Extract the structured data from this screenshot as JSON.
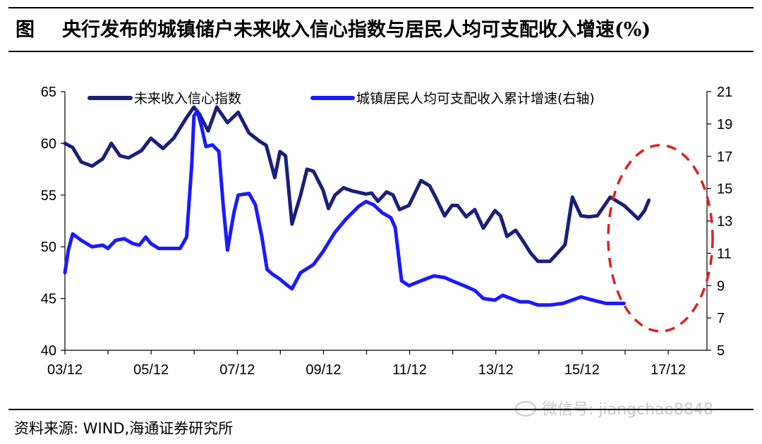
{
  "header": {
    "prefix": "图",
    "title": "央行发布的城镇储户未来收入信心指数与居民人均可支配收入增速(%)"
  },
  "footer": {
    "source": "资料来源: WIND,海通证券研究所",
    "watermark": "微信号: jiangchao8848"
  },
  "colors": {
    "series_confidence": "#1a1f7a",
    "series_income": "#1a1aff",
    "highlight_ellipse": "#e02020"
  },
  "chart_data": {
    "type": "line",
    "x_tick_labels": [
      "03/12",
      "05/12",
      "07/12",
      "09/12",
      "11/12",
      "13/12",
      "15/12",
      "17/12"
    ],
    "x_range": [
      2003.92,
      2018.85
    ],
    "y_left": {
      "range": [
        40,
        65
      ],
      "ticks": [
        40,
        45,
        50,
        55,
        60,
        65
      ]
    },
    "y_right": {
      "range": [
        5,
        21
      ],
      "ticks": [
        5,
        7,
        9,
        11,
        13,
        15,
        17,
        19,
        21
      ]
    },
    "grid": false,
    "legend_position": "top",
    "annotation": "red dashed ellipse highlighting 2016-2018",
    "series": [
      {
        "name": "未来收入信心指数",
        "axis": "left",
        "points": [
          [
            2003.92,
            60.0
          ],
          [
            2004.1,
            59.6
          ],
          [
            2004.3,
            58.2
          ],
          [
            2004.55,
            57.8
          ],
          [
            2004.8,
            58.5
          ],
          [
            2005.0,
            60.0
          ],
          [
            2005.2,
            58.8
          ],
          [
            2005.4,
            58.6
          ],
          [
            2005.7,
            59.3
          ],
          [
            2005.92,
            60.5
          ],
          [
            2006.2,
            59.5
          ],
          [
            2006.45,
            60.5
          ],
          [
            2006.75,
            62.5
          ],
          [
            2006.92,
            63.5
          ],
          [
            2007.05,
            62.8
          ],
          [
            2007.25,
            61.2
          ],
          [
            2007.45,
            63.5
          ],
          [
            2007.7,
            62.0
          ],
          [
            2007.95,
            63.0
          ],
          [
            2008.2,
            61.0
          ],
          [
            2008.45,
            60.2
          ],
          [
            2008.6,
            59.8
          ],
          [
            2008.8,
            56.7
          ],
          [
            2008.92,
            59.2
          ],
          [
            2009.05,
            58.8
          ],
          [
            2009.2,
            52.2
          ],
          [
            2009.4,
            55.0
          ],
          [
            2009.55,
            57.5
          ],
          [
            2009.7,
            57.3
          ],
          [
            2009.92,
            55.5
          ],
          [
            2010.05,
            53.7
          ],
          [
            2010.2,
            55.0
          ],
          [
            2010.4,
            55.7
          ],
          [
            2010.6,
            55.4
          ],
          [
            2010.92,
            55.1
          ],
          [
            2011.05,
            55.2
          ],
          [
            2011.2,
            54.4
          ],
          [
            2011.4,
            55.3
          ],
          [
            2011.55,
            55.0
          ],
          [
            2011.7,
            53.6
          ],
          [
            2011.92,
            54.0
          ],
          [
            2012.2,
            56.4
          ],
          [
            2012.4,
            55.9
          ],
          [
            2012.55,
            54.7
          ],
          [
            2012.75,
            53.0
          ],
          [
            2012.92,
            54.0
          ],
          [
            2013.05,
            54.0
          ],
          [
            2013.25,
            52.9
          ],
          [
            2013.45,
            53.6
          ],
          [
            2013.65,
            51.8
          ],
          [
            2013.92,
            53.5
          ],
          [
            2014.05,
            53.0
          ],
          [
            2014.2,
            51.0
          ],
          [
            2014.4,
            51.6
          ],
          [
            2014.55,
            50.7
          ],
          [
            2014.75,
            49.4
          ],
          [
            2014.92,
            48.6
          ],
          [
            2015.2,
            48.6
          ],
          [
            2015.4,
            49.5
          ],
          [
            2015.55,
            50.2
          ],
          [
            2015.72,
            54.8
          ],
          [
            2015.92,
            53.0
          ],
          [
            2016.1,
            52.9
          ],
          [
            2016.3,
            53.0
          ],
          [
            2016.6,
            54.8
          ],
          [
            2016.8,
            54.3
          ],
          [
            2016.92,
            54.0
          ],
          [
            2017.05,
            53.5
          ],
          [
            2017.25,
            52.7
          ],
          [
            2017.4,
            53.5
          ],
          [
            2017.5,
            54.5
          ]
        ]
      },
      {
        "name": "城镇居民人均可支配收入累计增速(右轴)",
        "axis": "right",
        "points": [
          [
            2003.92,
            9.8
          ],
          [
            2004.0,
            11.2
          ],
          [
            2004.1,
            12.2
          ],
          [
            2004.3,
            11.8
          ],
          [
            2004.55,
            11.4
          ],
          [
            2004.8,
            11.5
          ],
          [
            2004.92,
            11.3
          ],
          [
            2005.1,
            11.8
          ],
          [
            2005.3,
            11.9
          ],
          [
            2005.5,
            11.6
          ],
          [
            2005.65,
            11.5
          ],
          [
            2005.8,
            12.0
          ],
          [
            2005.92,
            11.6
          ],
          [
            2006.1,
            11.3
          ],
          [
            2006.35,
            11.3
          ],
          [
            2006.6,
            11.3
          ],
          [
            2006.75,
            12.0
          ],
          [
            2006.87,
            16.5
          ],
          [
            2006.92,
            19.5
          ],
          [
            2007.0,
            19.8
          ],
          [
            2007.1,
            18.8
          ],
          [
            2007.2,
            17.6
          ],
          [
            2007.35,
            17.7
          ],
          [
            2007.5,
            17.3
          ],
          [
            2007.6,
            14.0
          ],
          [
            2007.7,
            11.2
          ],
          [
            2007.85,
            13.5
          ],
          [
            2007.95,
            14.6
          ],
          [
            2008.2,
            14.7
          ],
          [
            2008.35,
            14.0
          ],
          [
            2008.5,
            12.0
          ],
          [
            2008.62,
            10.0
          ],
          [
            2008.75,
            9.7
          ],
          [
            2008.92,
            9.4
          ],
          [
            2009.1,
            9.0
          ],
          [
            2009.2,
            8.8
          ],
          [
            2009.4,
            9.8
          ],
          [
            2009.7,
            10.3
          ],
          [
            2009.92,
            11.1
          ],
          [
            2010.2,
            12.3
          ],
          [
            2010.45,
            13.1
          ],
          [
            2010.75,
            13.9
          ],
          [
            2010.92,
            14.2
          ],
          [
            2011.1,
            14.0
          ],
          [
            2011.3,
            13.5
          ],
          [
            2011.5,
            13.2
          ],
          [
            2011.6,
            12.6
          ],
          [
            2011.75,
            9.3
          ],
          [
            2011.92,
            9.0
          ],
          [
            2012.2,
            9.3
          ],
          [
            2012.5,
            9.6
          ],
          [
            2012.75,
            9.5
          ],
          [
            2012.92,
            9.3
          ],
          [
            2013.2,
            9.0
          ],
          [
            2013.45,
            8.7
          ],
          [
            2013.65,
            8.2
          ],
          [
            2013.92,
            8.1
          ],
          [
            2014.1,
            8.4
          ],
          [
            2014.3,
            8.2
          ],
          [
            2014.5,
            8.0
          ],
          [
            2014.7,
            8.0
          ],
          [
            2014.92,
            7.8
          ],
          [
            2015.2,
            7.8
          ],
          [
            2015.5,
            7.9
          ],
          [
            2015.92,
            8.3
          ],
          [
            2016.2,
            8.1
          ],
          [
            2016.5,
            7.9
          ],
          [
            2016.92,
            7.9
          ]
        ]
      }
    ]
  }
}
